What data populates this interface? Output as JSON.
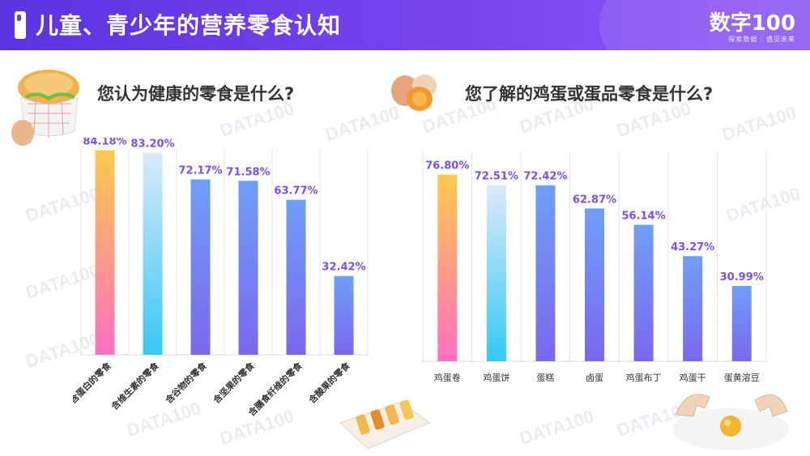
{
  "header": {
    "title": "儿童、青少年的营养零食认知",
    "logo": "数字100",
    "logo_sub": "探索数据 · 遇见未来"
  },
  "watermark": "DATA100",
  "left": {
    "question": "您认为健康的零食是什么?"
  },
  "right": {
    "question": "您了解的鸡蛋或蛋品零食是什么?"
  },
  "chart_data": [
    {
      "type": "bar",
      "title": "您认为健康的零食是什么?",
      "categories": [
        "含蛋白的零食",
        "含维生素的零食",
        "含谷物的零食",
        "含坚果的零食",
        "含膳食纤维的零食",
        "含酸果的零食"
      ],
      "values": [
        84.18,
        83.2,
        72.17,
        71.58,
        63.77,
        32.42
      ],
      "labels": [
        "84.18%",
        "83.20%",
        "72.17%",
        "71.58%",
        "63.77%",
        "32.42%"
      ],
      "ylim": [
        0,
        100
      ],
      "grid": "vertical",
      "colors": [
        "#ffc94d-#ff6fbf",
        "#dce9fb-#34c8f3",
        "#6f9ff8-#7a68ee",
        "#6f9ff8-#7a68ee",
        "#6f9ff8-#7a68ee",
        "#6f9ff8-#7a68ee"
      ]
    },
    {
      "type": "bar",
      "title": "您了解的鸡蛋或蛋品零食是什么?",
      "categories": [
        "鸡蛋卷",
        "鸡蛋饼",
        "蛋糕",
        "卤蛋",
        "鸡蛋布丁",
        "鸡蛋干",
        "蛋黄溶豆"
      ],
      "values": [
        76.8,
        72.51,
        72.42,
        62.87,
        56.14,
        43.27,
        30.99
      ],
      "labels": [
        "76.80%",
        "72.51%",
        "72.42%",
        "62.87%",
        "56.14%",
        "43.27%",
        "30.99%"
      ],
      "ylim": [
        0,
        100
      ],
      "grid": "vertical",
      "colors": [
        "#ffc94d-#ff6fbf",
        "#dce9fb-#34c8f3",
        "#6f9ff8-#7a68ee",
        "#6f9ff8-#7a68ee",
        "#6f9ff8-#7a68ee",
        "#6f9ff8-#7a68ee",
        "#6f9ff8-#7a68ee"
      ]
    }
  ]
}
